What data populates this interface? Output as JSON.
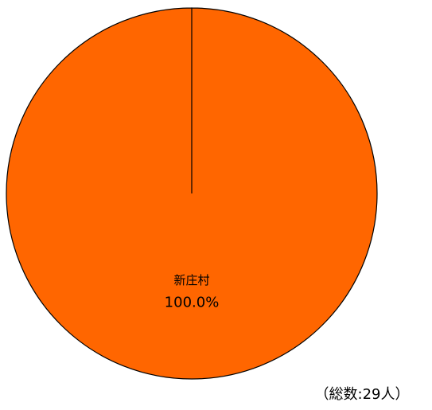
{
  "chart_data": {
    "type": "pie",
    "categories": [
      "新庄村"
    ],
    "values": [
      100
    ],
    "value_labels": [
      "100.0%"
    ],
    "colors": [
      "#ff6600"
    ],
    "note": "（総数:29人）"
  }
}
